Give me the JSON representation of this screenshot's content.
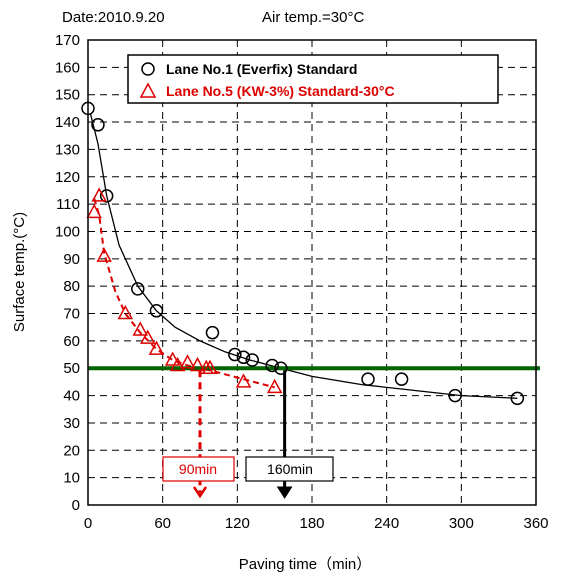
{
  "header": {
    "date": "Date:2010.9.20",
    "air_temp": "Air temp.=30°C"
  },
  "chart_data": {
    "type": "scatter",
    "title": "",
    "xlabel": "Paving time（min）",
    "ylabel": "Surface temp.(°C)",
    "xlim": [
      0,
      360
    ],
    "ylim": [
      0,
      170
    ],
    "xticks": [
      "0",
      "60",
      "120",
      "180",
      "240",
      "300",
      "360"
    ],
    "yticks": [
      "0",
      "10",
      "20",
      "30",
      "40",
      "50",
      "60",
      "70",
      "80",
      "90",
      "100",
      "110",
      "120",
      "130",
      "140",
      "150",
      "160",
      "170"
    ],
    "grid": true,
    "legend_position": "top",
    "threshold_line": {
      "y": 50,
      "color": "#006400"
    },
    "series": [
      {
        "name": "Lane No.1 (Everfix) Standard",
        "marker": "circle",
        "color": "#000000",
        "line_style": "solid",
        "x": [
          0,
          8,
          15,
          40,
          55,
          100,
          118,
          125,
          132,
          148,
          155,
          225,
          252,
          295,
          345
        ],
        "y": [
          145,
          139,
          113,
          79,
          71,
          63,
          55,
          54,
          53,
          51,
          50,
          46,
          46,
          40,
          39
        ],
        "curve": {
          "x": [
            2,
            8,
            15,
            25,
            40,
            55,
            70,
            90,
            110,
            130,
            155,
            180,
            220,
            260,
            300,
            345
          ],
          "y": [
            143,
            132,
            113,
            95,
            80,
            71,
            65,
            60,
            56,
            53,
            50,
            47,
            44,
            42,
            40,
            39
          ]
        }
      },
      {
        "name": "Lane No.5 (KW-3%) Standard-30°C",
        "marker": "triangle",
        "color": "#dd0000",
        "line_style": "dashed",
        "x": [
          5,
          9,
          13,
          30,
          42,
          48,
          55,
          68,
          72,
          80,
          88,
          95,
          98,
          125,
          150
        ],
        "y": [
          107,
          113,
          91,
          70,
          64,
          61,
          57,
          53,
          51,
          52,
          51,
          50,
          50,
          45,
          43
        ],
        "curve": {
          "x": [
            5,
            9,
            13,
            22,
            30,
            42,
            55,
            68,
            80,
            90,
            100,
            125,
            150
          ],
          "y": [
            112,
            106,
            92,
            78,
            70,
            63,
            57,
            53,
            51,
            50,
            49,
            46,
            43
          ]
        }
      }
    ],
    "annotations": [
      {
        "text": "90min",
        "x": 90,
        "color": "#dd0000",
        "line_style": "dashed"
      },
      {
        "text": "160min",
        "x": 158,
        "color": "#000000",
        "line_style": "solid"
      }
    ]
  }
}
